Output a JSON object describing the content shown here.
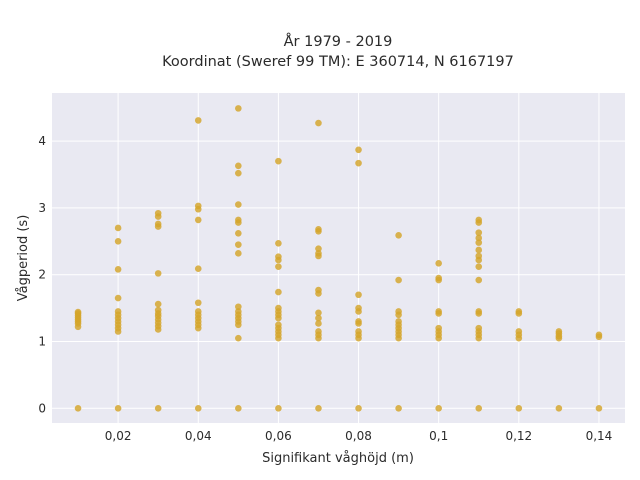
{
  "chart_data": {
    "type": "scatter",
    "title": [
      "År 1979 - 2019",
      "Koordinat (Sweref 99 TM): E 360714, N 6167197"
    ],
    "xlabel": "Signifikant våghöjd (m)",
    "ylabel": "Vågperiod (s)",
    "xlim": [
      0.0035,
      0.1465
    ],
    "ylim": [
      -0.22,
      4.72
    ],
    "xticks": [
      {
        "value": 0.02,
        "label": "0,02"
      },
      {
        "value": 0.04,
        "label": "0,04"
      },
      {
        "value": 0.06,
        "label": "0,06"
      },
      {
        "value": 0.08,
        "label": "0,08"
      },
      {
        "value": 0.1,
        "label": "0,1"
      },
      {
        "value": 0.12,
        "label": "0,12"
      },
      {
        "value": 0.14,
        "label": "0,14"
      }
    ],
    "yticks": [
      {
        "value": 0,
        "label": "0"
      },
      {
        "value": 1,
        "label": "1"
      },
      {
        "value": 2,
        "label": "2"
      },
      {
        "value": 3,
        "label": "3"
      },
      {
        "value": 4,
        "label": "4"
      }
    ],
    "grid": true,
    "point_color": "#d4a52a",
    "background_color": "#e9e9f2",
    "grid_color": "#ffffff",
    "points_by_x": [
      {
        "x": 0.01,
        "y": [
          0,
          1.22,
          1.27,
          1.3,
          1.33,
          1.36,
          1.39,
          1.42,
          1.44
        ]
      },
      {
        "x": 0.02,
        "y": [
          0,
          1.15,
          1.2,
          1.25,
          1.3,
          1.35,
          1.4,
          1.45,
          1.65,
          2.08,
          2.5,
          2.7
        ]
      },
      {
        "x": 0.03,
        "y": [
          0,
          1.18,
          1.23,
          1.28,
          1.33,
          1.38,
          1.42,
          1.47,
          1.56,
          2.02,
          2.72,
          2.76,
          2.87,
          2.92
        ]
      },
      {
        "x": 0.04,
        "y": [
          0,
          1.2,
          1.25,
          1.3,
          1.35,
          1.4,
          1.45,
          1.58,
          2.09,
          2.82,
          2.98,
          3.03,
          4.31
        ]
      },
      {
        "x": 0.05,
        "y": [
          0,
          1.05,
          1.25,
          1.3,
          1.35,
          1.4,
          1.45,
          1.52,
          2.32,
          2.45,
          2.62,
          2.78,
          2.82,
          3.05,
          3.52,
          3.63,
          4.49
        ]
      },
      {
        "x": 0.06,
        "y": [
          0,
          1.05,
          1.1,
          1.15,
          1.2,
          1.25,
          1.35,
          1.4,
          1.45,
          1.5,
          1.74,
          2.12,
          2.22,
          2.27,
          2.47,
          3.7
        ]
      },
      {
        "x": 0.07,
        "y": [
          0,
          1.05,
          1.1,
          1.15,
          1.27,
          1.35,
          1.43,
          1.72,
          1.77,
          2.28,
          2.32,
          2.39,
          2.65,
          2.68,
          4.27
        ]
      },
      {
        "x": 0.08,
        "y": [
          0,
          1.05,
          1.1,
          1.15,
          1.27,
          1.3,
          1.45,
          1.5,
          1.7,
          3.67,
          3.87
        ]
      },
      {
        "x": 0.09,
        "y": [
          0,
          1.05,
          1.1,
          1.15,
          1.2,
          1.25,
          1.3,
          1.4,
          1.45,
          1.92,
          2.59
        ]
      },
      {
        "x": 0.1,
        "y": [
          0,
          1.05,
          1.1,
          1.15,
          1.2,
          1.42,
          1.45,
          1.92,
          1.95,
          2.17
        ]
      },
      {
        "x": 0.11,
        "y": [
          0,
          1.05,
          1.1,
          1.15,
          1.2,
          1.42,
          1.45,
          1.92,
          2.12,
          2.22,
          2.28,
          2.37,
          2.48,
          2.55,
          2.63,
          2.78,
          2.82
        ]
      },
      {
        "x": 0.12,
        "y": [
          0,
          1.05,
          1.1,
          1.15,
          1.42,
          1.45
        ]
      },
      {
        "x": 0.13,
        "y": [
          0,
          1.05,
          1.08,
          1.12,
          1.15
        ]
      },
      {
        "x": 0.14,
        "y": [
          0,
          1.07,
          1.1
        ]
      }
    ]
  }
}
